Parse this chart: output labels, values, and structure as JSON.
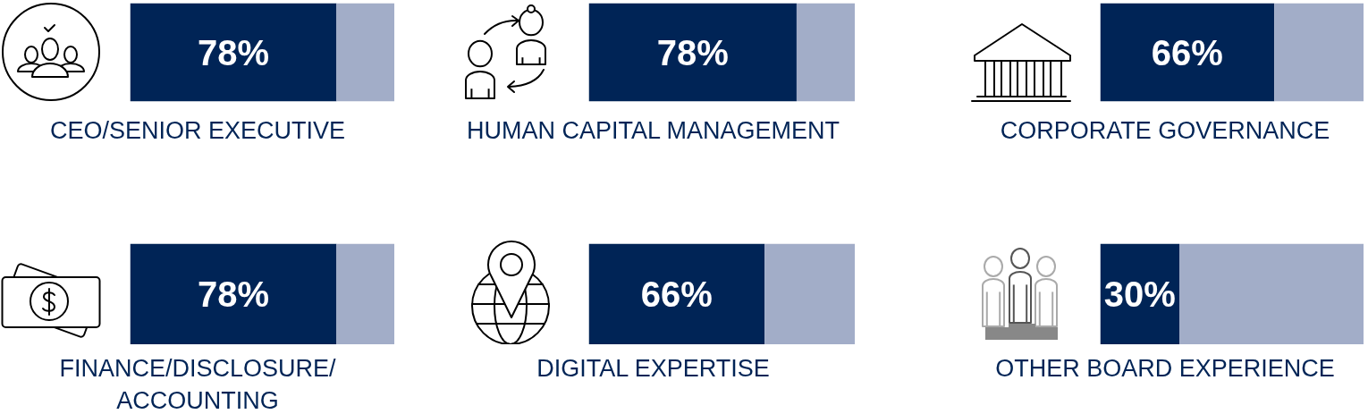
{
  "chart_data": [
    {
      "type": "bar",
      "orientation": "horizontal",
      "stacked": true,
      "categories": [
        null
      ],
      "xlim": [
        0,
        100
      ],
      "tick_labels": false,
      "xlabel": "CEO/SENIOR EXECUTIVE",
      "series": [
        {
          "color": "#002456",
          "values": [
            78
          ],
          "value_labels": [
            "78%"
          ]
        },
        {
          "color": "#a2adc8",
          "values": [
            22
          ]
        }
      ]
    },
    {
      "type": "bar",
      "orientation": "horizontal",
      "stacked": true,
      "categories": [
        null
      ],
      "xlim": [
        0,
        100
      ],
      "tick_labels": false,
      "xlabel": "HUMAN CAPITAL MANAGEMENT",
      "series": [
        {
          "color": "#002456",
          "values": [
            78
          ],
          "value_labels": [
            "78%"
          ]
        },
        {
          "color": "#a2adc8",
          "values": [
            22
          ]
        }
      ]
    },
    {
      "type": "bar",
      "orientation": "horizontal",
      "stacked": true,
      "categories": [
        null
      ],
      "xlim": [
        0,
        100
      ],
      "tick_labels": false,
      "xlabel": "CORPORATE GOVERNANCE",
      "series": [
        {
          "color": "#002456",
          "values": [
            66
          ],
          "value_labels": [
            "66%"
          ]
        },
        {
          "color": "#a2adc8",
          "values": [
            34
          ]
        }
      ]
    },
    {
      "type": "bar",
      "orientation": "horizontal",
      "stacked": true,
      "categories": [
        null
      ],
      "xlim": [
        0,
        100
      ],
      "tick_labels": false,
      "xlabel": "FINANCE/DISCLOSURE/ ACCOUNTING",
      "series": [
        {
          "color": "#002456",
          "values": [
            78
          ],
          "value_labels": [
            "78%"
          ]
        },
        {
          "color": "#a2adc8",
          "values": [
            22
          ]
        }
      ]
    },
    {
      "type": "bar",
      "orientation": "horizontal",
      "stacked": true,
      "categories": [
        null
      ],
      "xlim": [
        0,
        100
      ],
      "tick_labels": false,
      "xlabel": "DIGITAL EXPERTISE",
      "series": [
        {
          "color": "#002456",
          "values": [
            66
          ],
          "value_labels": [
            "66%"
          ]
        },
        {
          "color": "#a2adc8",
          "values": [
            34
          ]
        }
      ]
    },
    {
      "type": "bar",
      "orientation": "horizontal",
      "stacked": true,
      "categories": [
        null
      ],
      "xlim": [
        0,
        100
      ],
      "tick_labels": false,
      "xlabel": "OTHER BOARD EXPERIENCE",
      "series": [
        {
          "color": "#002456",
          "values": [
            30
          ],
          "value_labels": [
            "30%"
          ]
        },
        {
          "color": "#a2adc8",
          "values": [
            70
          ]
        }
      ]
    }
  ]
}
